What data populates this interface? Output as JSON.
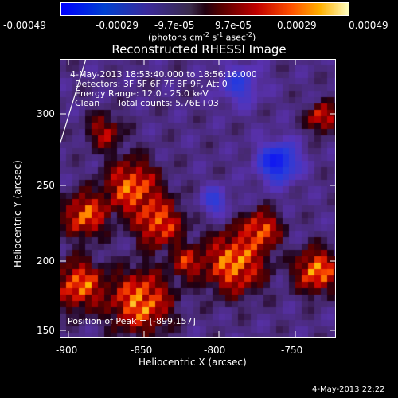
{
  "colorbar": {
    "ticks": [
      "-0.00049",
      "-0.00029",
      "-9.7e-05",
      "9.7e-05",
      "0.00029",
      "0.00049"
    ],
    "unit_base": "(photons cm",
    "unit_sup1": "-2",
    "unit_mid": " s",
    "unit_sup2": "-1",
    "unit_mid2": " asec",
    "unit_sup3": "-2",
    "unit_end": ")"
  },
  "title": "Reconstructed RHESSI Image",
  "annotations": {
    "time_range": "4-May-2013 18:53:40.000 to 18:56:16.000",
    "detectors": "Detectors: 3F 5F 6F 7F 8F 9F, Att 0",
    "energy_range": "Energy Range: 12.0 - 25.0 keV",
    "algorithm": "Clean",
    "total_counts": "Total counts: 5.76E+03",
    "peak": "Position of Peak = [-899,157]"
  },
  "axes": {
    "xlabel": "Heliocentric X (arcsec)",
    "ylabel": "Heliocentric Y (arcsec)",
    "xticks": [
      "-900",
      "-850",
      "-800",
      "-750"
    ],
    "yticks": [
      "150",
      "200",
      "250",
      "300"
    ]
  },
  "footer": {
    "timestamp": "4-May-2013 22:22"
  },
  "colors": {
    "background": "#000000",
    "text": "#ffffff"
  }
}
